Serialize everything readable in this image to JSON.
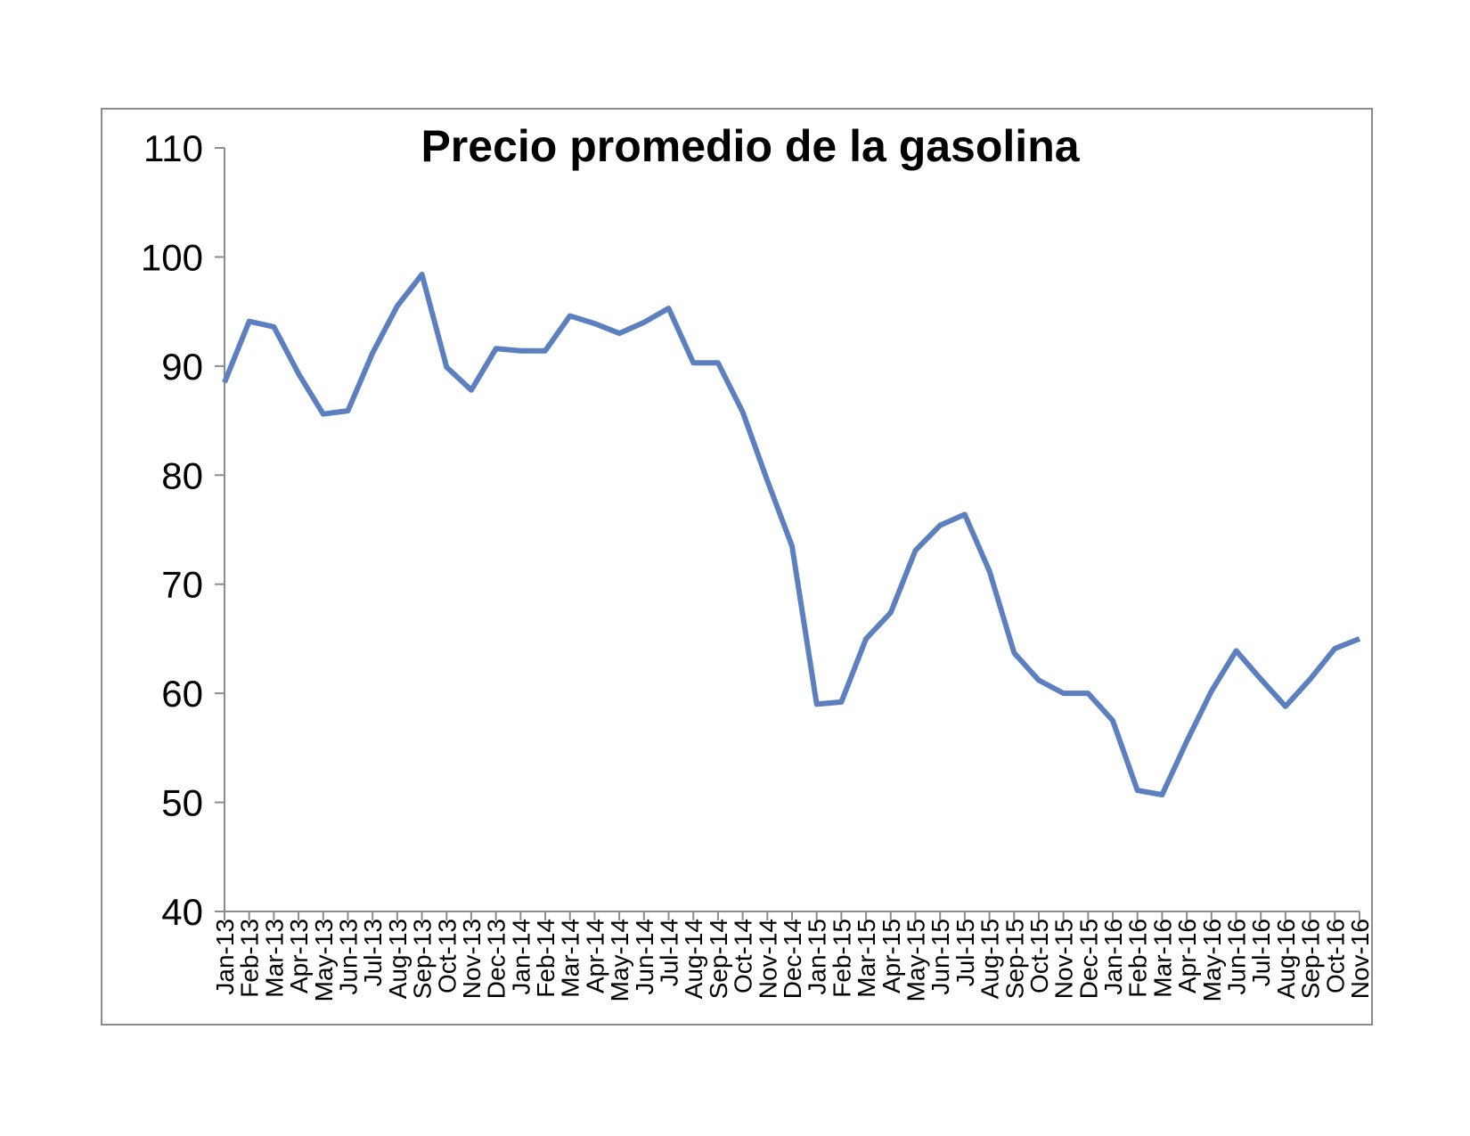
{
  "colors": {
    "line": "#5b7fbf",
    "axis": "#8c8c8c",
    "frame": "#8c8c8c"
  },
  "chart_data": {
    "type": "line",
    "title": "Precio promedio de la gasolina",
    "xlabel": "",
    "ylabel": "",
    "ylim": [
      40,
      110
    ],
    "yticks": [
      40,
      50,
      60,
      70,
      80,
      90,
      100,
      110
    ],
    "grid": false,
    "legend": "none",
    "categories": [
      "Jan-13",
      "Feb-13",
      "Mar-13",
      "Apr-13",
      "May-13",
      "Jun-13",
      "Jul-13",
      "Aug-13",
      "Sep-13",
      "Oct-13",
      "Nov-13",
      "Dec-13",
      "Jan-14",
      "Feb-14",
      "Mar-14",
      "Apr-14",
      "May-14",
      "Jun-14",
      "Jul-14",
      "Aug-14",
      "Sep-14",
      "Oct-14",
      "Nov-14",
      "Dec-14",
      "Jan-15",
      "Feb-15",
      "Mar-15",
      "Apr-15",
      "May-15",
      "Jun-15",
      "Jul-15",
      "Aug-15",
      "Sep-15",
      "Oct-15",
      "Nov-15",
      "Dec-15",
      "Jan-16",
      "Feb-16",
      "Mar-16",
      "Apr-16",
      "May-16",
      "Jun-16",
      "Jul-16",
      "Aug-16",
      "Sep-16",
      "Oct-16",
      "Nov-16"
    ],
    "series": [
      {
        "values": [
          88.5,
          94.1,
          93.6,
          89.3,
          85.6,
          85.9,
          91.2,
          95.5,
          98.4,
          89.9,
          87.8,
          91.6,
          91.4,
          91.4,
          94.6,
          93.9,
          93.0,
          94.0,
          95.3,
          90.3,
          90.3,
          85.8,
          79.5,
          73.5,
          59.0,
          59.2,
          65.0,
          67.4,
          73.1,
          75.4,
          76.4,
          71.2,
          63.7,
          61.2,
          60.0,
          60.0,
          57.5,
          51.1,
          50.7,
          55.6,
          60.2,
          63.9,
          61.3,
          58.8,
          61.3,
          64.1,
          65.0
        ]
      }
    ]
  }
}
